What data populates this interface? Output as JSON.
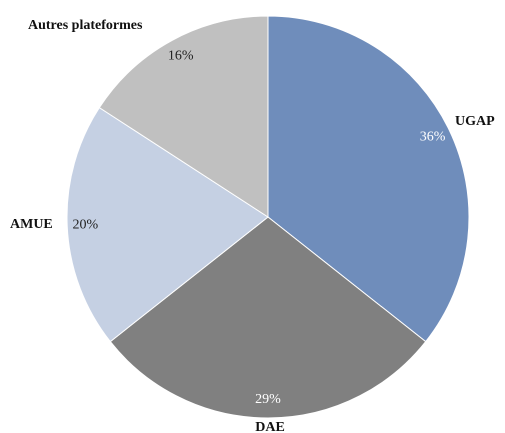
{
  "chart_data": {
    "type": "pie",
    "categories": [
      "UGAP",
      "DAE",
      "AMUE",
      "Autres plateformes"
    ],
    "values": [
      36,
      29,
      20,
      16
    ],
    "value_labels": [
      "36%",
      "29%",
      "20%",
      "16%"
    ],
    "colors": [
      "#6f8dbb",
      "#808080",
      "#c5d0e3",
      "#c0c0c0"
    ],
    "start_angle": 0,
    "direction": "clockwise"
  }
}
